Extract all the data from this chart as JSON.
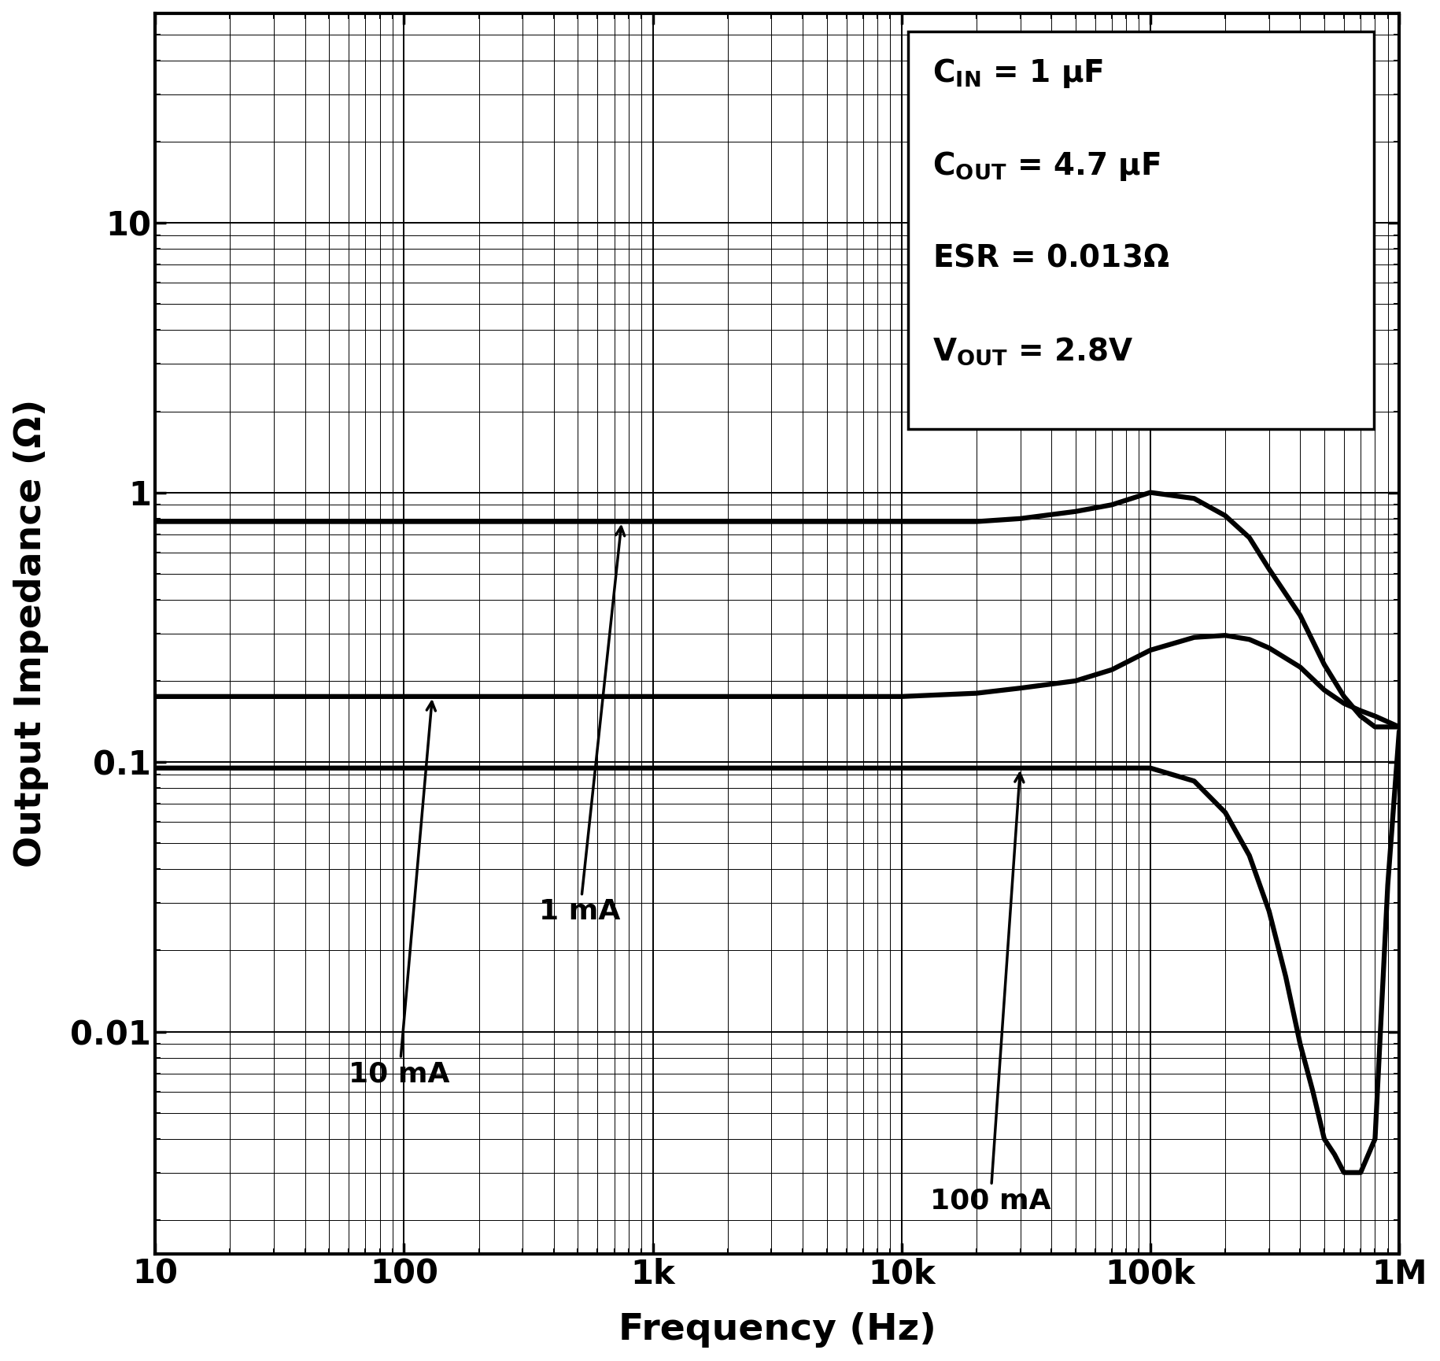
{
  "xlabel": "Frequency (Hz)",
  "ylabel": "Output Impedance (Ω)",
  "xmin": 10,
  "xmax": 1000000,
  "ymin": 0.0015,
  "ymax": 60,
  "annotation_line1": "C$_\\mathregular{IN}$ = 1 μF",
  "annotation_line2": "C$_\\mathregular{OUT}$ = 4.7 μF",
  "annotation_line3": "ESR = 0.013Ω",
  "annotation_line4": "V$_\\mathregular{OUT}$ = 2.8V",
  "curve_1mA_x": [
    10,
    50,
    100,
    300,
    500,
    1000,
    3000,
    5000,
    10000,
    20000,
    30000,
    50000,
    70000,
    100000,
    150000,
    200000,
    250000,
    300000,
    400000,
    500000,
    600000,
    700000,
    800000,
    1000000
  ],
  "curve_1mA_y": [
    0.78,
    0.78,
    0.78,
    0.78,
    0.78,
    0.78,
    0.78,
    0.78,
    0.78,
    0.78,
    0.8,
    0.85,
    0.9,
    1.0,
    0.95,
    0.82,
    0.68,
    0.52,
    0.35,
    0.23,
    0.175,
    0.148,
    0.135,
    0.135
  ],
  "curve_10mA_x": [
    10,
    50,
    100,
    200,
    300,
    500,
    1000,
    3000,
    5000,
    10000,
    20000,
    30000,
    50000,
    70000,
    100000,
    150000,
    200000,
    250000,
    300000,
    400000,
    500000,
    600000,
    700000,
    800000,
    1000000
  ],
  "curve_10mA_y": [
    0.175,
    0.175,
    0.175,
    0.175,
    0.175,
    0.175,
    0.175,
    0.175,
    0.175,
    0.175,
    0.18,
    0.188,
    0.2,
    0.22,
    0.26,
    0.29,
    0.295,
    0.285,
    0.265,
    0.225,
    0.185,
    0.165,
    0.155,
    0.148,
    0.135
  ],
  "curve_100mA_x": [
    10,
    50,
    100,
    300,
    500,
    1000,
    3000,
    5000,
    10000,
    20000,
    30000,
    50000,
    70000,
    100000,
    150000,
    200000,
    250000,
    300000,
    350000,
    400000,
    450000,
    500000,
    550000,
    600000,
    700000,
    800000,
    900000,
    1000000
  ],
  "curve_100mA_y": [
    0.095,
    0.095,
    0.095,
    0.095,
    0.095,
    0.095,
    0.095,
    0.095,
    0.095,
    0.095,
    0.095,
    0.095,
    0.095,
    0.095,
    0.085,
    0.065,
    0.045,
    0.028,
    0.016,
    0.009,
    0.006,
    0.004,
    0.0035,
    0.003,
    0.003,
    0.004,
    0.035,
    0.13
  ],
  "background_color": "#ffffff",
  "line_color": "#000000",
  "line_width": 4.5,
  "font_size_label": 34,
  "font_size_tick": 30,
  "font_size_annotation": 28,
  "font_size_curve_label": 26,
  "grid_major_lw": 1.4,
  "grid_minor_lw": 0.7
}
